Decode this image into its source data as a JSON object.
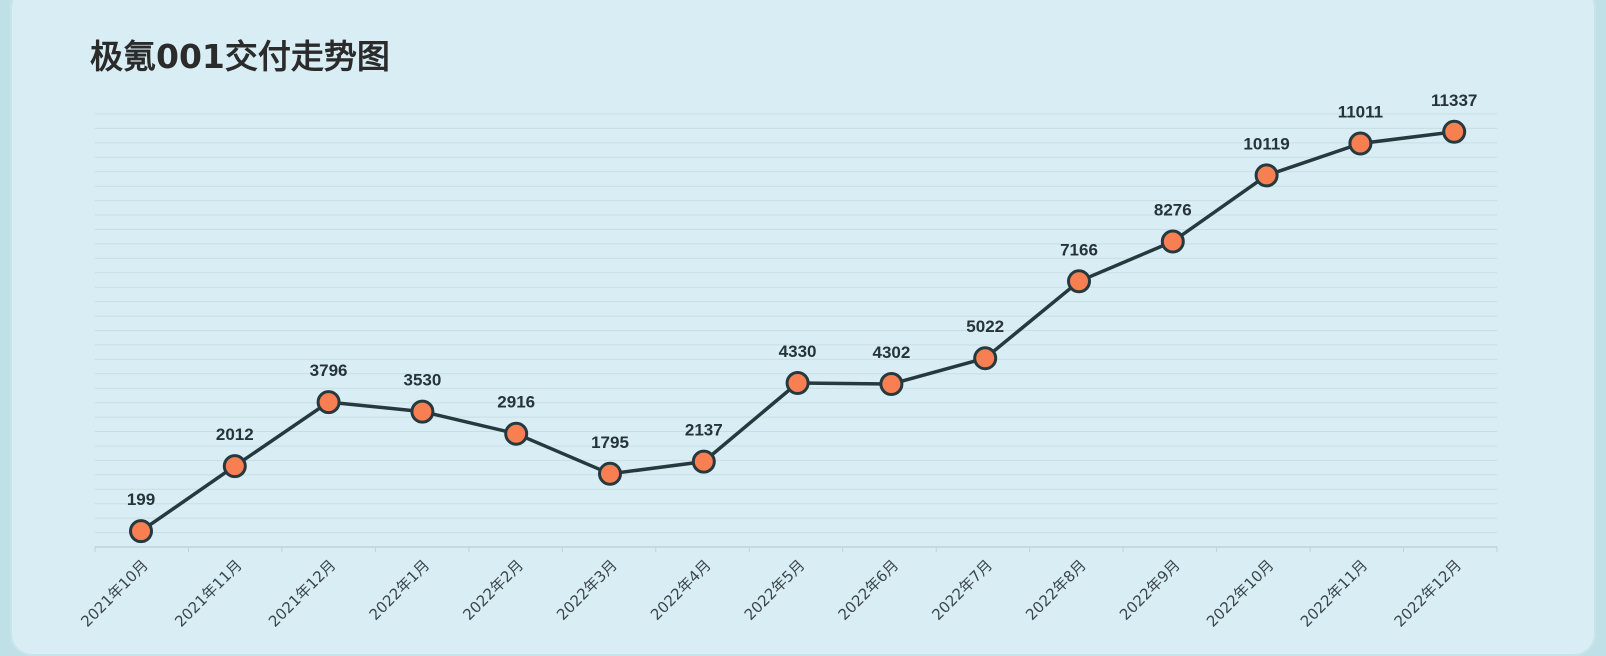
{
  "title": "极氪001交付走势图",
  "colors": {
    "background": "#d9eef4",
    "line": "#25393f",
    "marker_fill": "#f77f52",
    "marker_stroke": "#25393f",
    "grid": "#c9dde2"
  },
  "chart_data": {
    "type": "line",
    "title": "极氪001交付走势图",
    "xlabel": "",
    "ylabel": "",
    "categories": [
      "2021年10月",
      "2021年11月",
      "2021年12月",
      "2022年1月",
      "2022年2月",
      "2022年3月",
      "2022年4月",
      "2022年5月",
      "2022年6月",
      "2022年7月",
      "2022年8月",
      "2022年9月",
      "2022年10月",
      "2022年11月",
      "2022年12月"
    ],
    "values": [
      199,
      2012,
      3796,
      3530,
      2916,
      1795,
      2137,
      4330,
      4302,
      5022,
      7166,
      8276,
      10119,
      11011,
      11337
    ],
    "grid": true,
    "legend": "none"
  }
}
